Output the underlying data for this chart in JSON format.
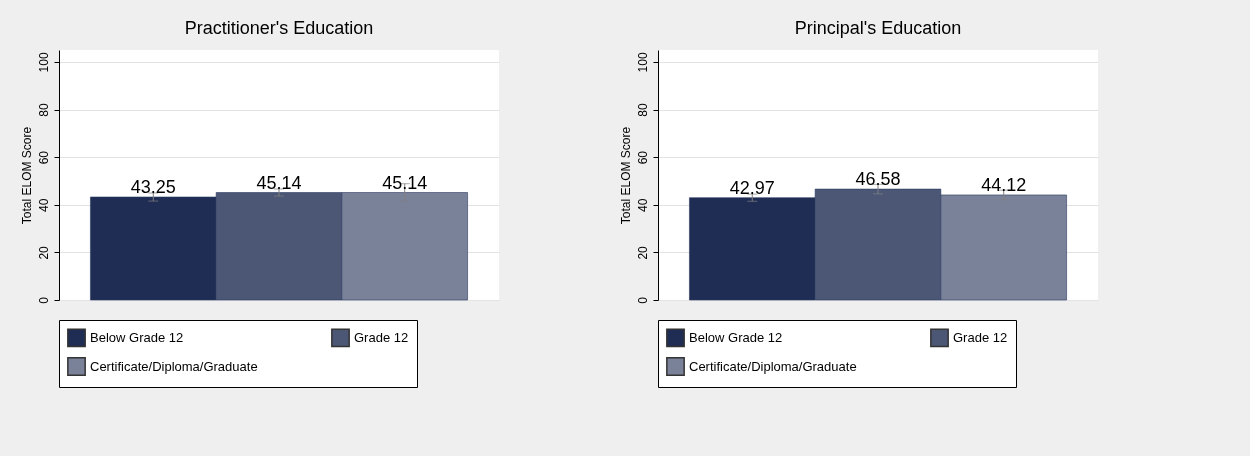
{
  "chart_data": [
    {
      "type": "bar",
      "title": "Practitioner's Education",
      "ylabel": "Total ELOM Score",
      "categories": [
        null
      ],
      "series": [
        {
          "name": "Below Grade 12",
          "color": "#1f2d54",
          "values": [
            43.25
          ],
          "errors": [
            1.7
          ]
        },
        {
          "name": "Grade 12",
          "color": "#4b5775",
          "values": [
            45.14
          ],
          "errors": [
            1.5
          ]
        },
        {
          "name": "Certificate/Diploma/Graduate",
          "color": "#7a8299",
          "values": [
            45.14
          ],
          "errors": [
            3.7
          ]
        }
      ],
      "ylim": [
        0,
        105
      ],
      "yticks": [
        0,
        20,
        40,
        60,
        80,
        100
      ],
      "grid": "y",
      "legend": "bottom",
      "data_labels": true
    },
    {
      "type": "bar",
      "title": "Principal's Education",
      "ylabel": "Total ELOM Score",
      "categories": [
        null
      ],
      "series": [
        {
          "name": "Below Grade 12",
          "color": "#1f2d54",
          "values": [
            42.97
          ],
          "errors": [
            1.5
          ]
        },
        {
          "name": "Grade 12",
          "color": "#4b5775",
          "values": [
            46.58
          ],
          "errors": [
            2
          ]
        },
        {
          "name": "Certificate/Diploma/Graduate",
          "color": "#7a8299",
          "values": [
            44.12
          ],
          "errors": [
            2
          ]
        }
      ],
      "ylim": [
        0,
        105
      ],
      "yticks": [
        0,
        20,
        40,
        60,
        80,
        100
      ],
      "grid": "y",
      "legend": "bottom",
      "data_labels": true
    }
  ]
}
